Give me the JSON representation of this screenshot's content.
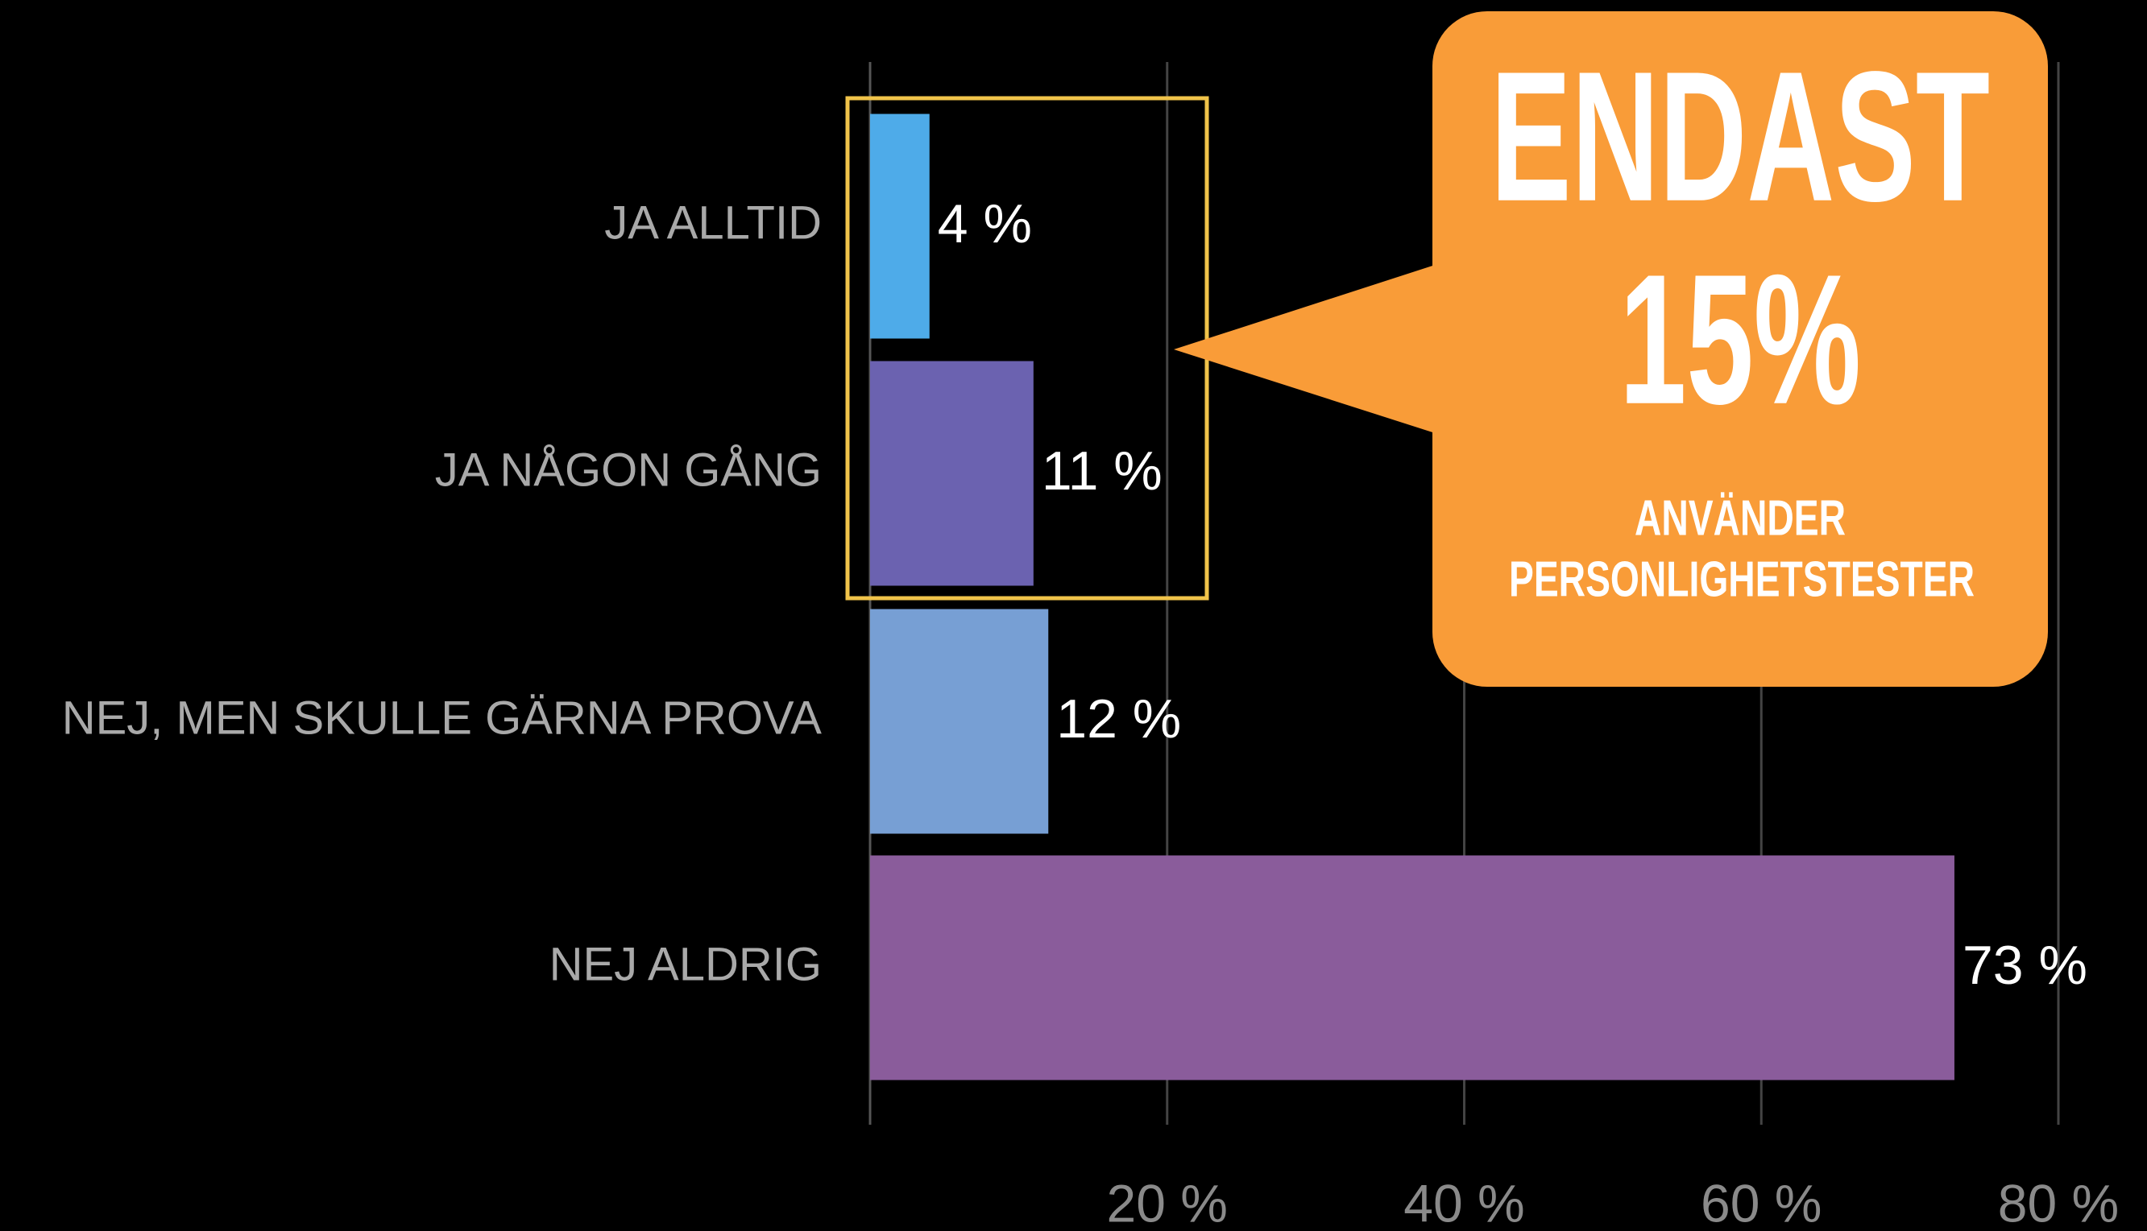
{
  "chart_data": {
    "type": "barh",
    "categories": [
      "JA ALLTID",
      "JA NÅGON GÅNG",
      "NEJ, MEN SKULLE GÄRNA PROVA",
      "NEJ ALDRIG"
    ],
    "values": [
      4,
      11,
      12,
      73
    ],
    "value_labels": [
      "4 %",
      "11 %",
      "12 %",
      "73 %"
    ],
    "colors": [
      "#4eabe9",
      "#6b62b0",
      "#779fd4",
      "#8a5c9b"
    ],
    "xlim": [
      0,
      80
    ],
    "xticks": [
      {
        "value": 20,
        "label": "20 %"
      },
      {
        "value": 40,
        "label": "40 %"
      },
      {
        "value": 60,
        "label": "60 %"
      },
      {
        "value": 80,
        "label": "80 %"
      }
    ],
    "grid": true,
    "annotation": {
      "lines": [
        "ENDAST",
        "15%",
        "ANVÄNDER",
        "PERSONLIGHETSTESTER"
      ]
    }
  }
}
